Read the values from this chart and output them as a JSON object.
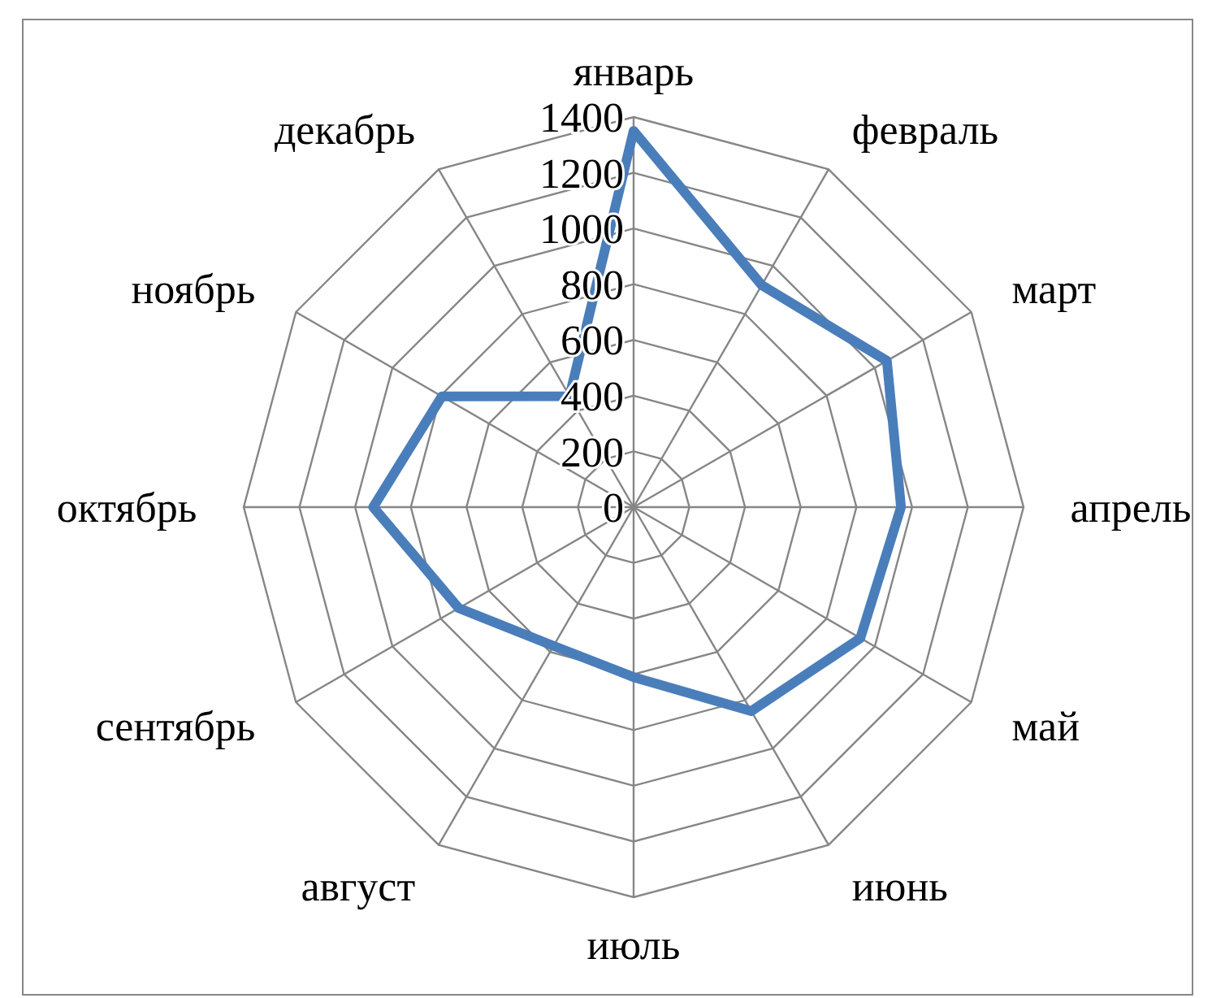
{
  "chart_data": {
    "type": "radar",
    "categories": [
      "январь",
      "февраль",
      "март",
      "апрель",
      "май",
      "июнь",
      "июль",
      "август",
      "сентябрь",
      "октябрь",
      "ноябрь",
      "декабрь"
    ],
    "series": [
      {
        "color": "#4a7ebb",
        "values": [
          1350,
          920,
          1050,
          960,
          940,
          845,
          610,
          575,
          725,
          935,
          795,
          460
        ]
      }
    ],
    "ylim": [
      0,
      1400
    ],
    "yticks": [
      0,
      200,
      400,
      600,
      800,
      1000,
      1200,
      1400
    ],
    "grid": true,
    "marker": "none",
    "line_style": "solid"
  }
}
